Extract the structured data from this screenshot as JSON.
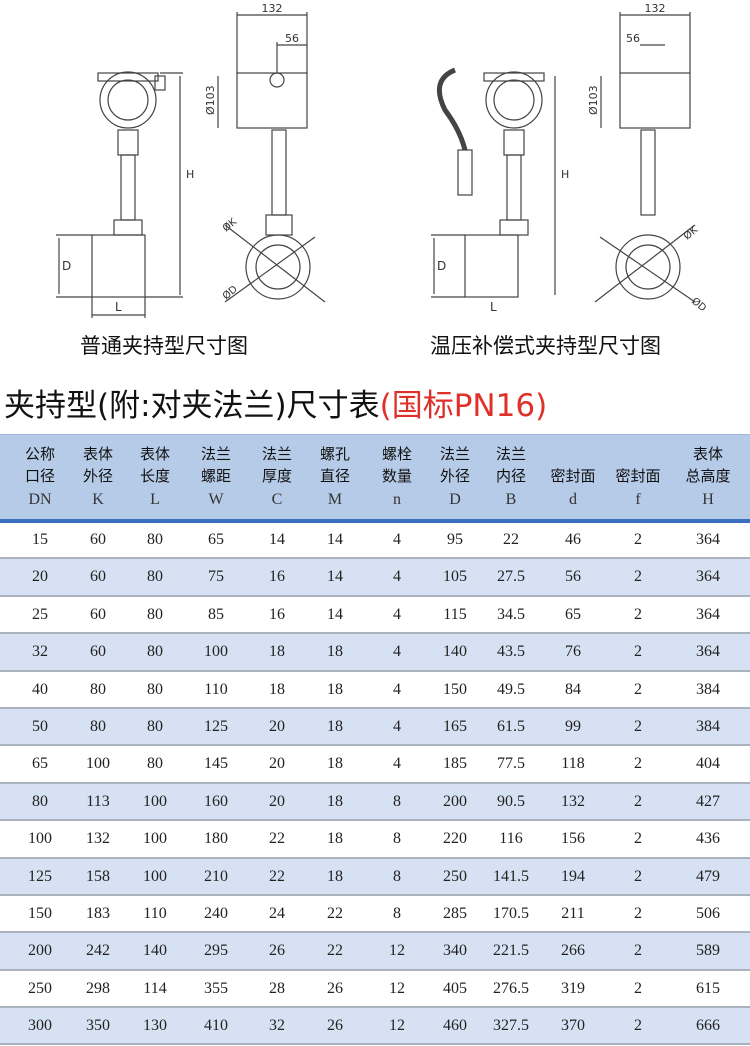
{
  "drawings": [
    {
      "caption": "普通夹持型尺寸图",
      "dims": {
        "width": "132",
        "offset": "56",
        "head_dia": "Ø103",
        "height": "H",
        "pipe_dia": "D",
        "length": "L",
        "body_dia": "ØK",
        "flange_dia": "ØD"
      }
    },
    {
      "caption": "温压补偿式夹持型尺寸图",
      "dims": {
        "width": "132",
        "offset": "56",
        "head_dia": "Ø103",
        "height": "H",
        "pipe_dia": "D",
        "length": "L",
        "body_dia": "ØK",
        "flange_dia": "ØD"
      }
    }
  ],
  "title": {
    "main": "夹持型(附:对夹法兰)尺寸表",
    "standard": "(国标PN16)",
    "accent_color": "#e0302a"
  },
  "table": {
    "header_bg": "#b6cbe7",
    "alt_row_bg": "#d6e2f3",
    "columns": [
      {
        "l1": "公称",
        "l2": "口径",
        "sym": "DN"
      },
      {
        "l1": "表体",
        "l2": "外径",
        "sym": "K"
      },
      {
        "l1": "表体",
        "l2": "长度",
        "sym": "L"
      },
      {
        "l1": "法兰",
        "l2": "螺距",
        "sym": "W"
      },
      {
        "l1": "法兰",
        "l2": "厚度",
        "sym": "C"
      },
      {
        "l1": "螺孔",
        "l2": "直径",
        "sym": "M"
      },
      {
        "l1": "螺栓",
        "l2": "数量",
        "sym": "n"
      },
      {
        "l1": "法兰",
        "l2": "外径",
        "sym": "D"
      },
      {
        "l1": "法兰",
        "l2": "内径",
        "sym": "B"
      },
      {
        "l1": "",
        "l2": "密封面",
        "sym": "d"
      },
      {
        "l1": "",
        "l2": "密封面",
        "sym": "f"
      },
      {
        "l1": "表体",
        "l2": "总高度",
        "sym": "H"
      }
    ],
    "rows": [
      [
        "15",
        "60",
        "80",
        "65",
        "14",
        "14",
        "4",
        "95",
        "22",
        "46",
        "2",
        "364"
      ],
      [
        "20",
        "60",
        "80",
        "75",
        "16",
        "14",
        "4",
        "105",
        "27.5",
        "56",
        "2",
        "364"
      ],
      [
        "25",
        "60",
        "80",
        "85",
        "16",
        "14",
        "4",
        "115",
        "34.5",
        "65",
        "2",
        "364"
      ],
      [
        "32",
        "60",
        "80",
        "100",
        "18",
        "18",
        "4",
        "140",
        "43.5",
        "76",
        "2",
        "364"
      ],
      [
        "40",
        "80",
        "80",
        "110",
        "18",
        "18",
        "4",
        "150",
        "49.5",
        "84",
        "2",
        "384"
      ],
      [
        "50",
        "80",
        "80",
        "125",
        "20",
        "18",
        "4",
        "165",
        "61.5",
        "99",
        "2",
        "384"
      ],
      [
        "65",
        "100",
        "80",
        "145",
        "20",
        "18",
        "4",
        "185",
        "77.5",
        "118",
        "2",
        "404"
      ],
      [
        "80",
        "113",
        "100",
        "160",
        "20",
        "18",
        "8",
        "200",
        "90.5",
        "132",
        "2",
        "427"
      ],
      [
        "100",
        "132",
        "100",
        "180",
        "22",
        "18",
        "8",
        "220",
        "116",
        "156",
        "2",
        "436"
      ],
      [
        "125",
        "158",
        "100",
        "210",
        "22",
        "18",
        "8",
        "250",
        "141.5",
        "194",
        "2",
        "479"
      ],
      [
        "150",
        "183",
        "110",
        "240",
        "24",
        "22",
        "8",
        "285",
        "170.5",
        "211",
        "2",
        "506"
      ],
      [
        "200",
        "242",
        "140",
        "295",
        "26",
        "22",
        "12",
        "340",
        "221.5",
        "266",
        "2",
        "589"
      ],
      [
        "250",
        "298",
        "114",
        "355",
        "28",
        "26",
        "12",
        "405",
        "276.5",
        "319",
        "2",
        "615"
      ],
      [
        "300",
        "350",
        "130",
        "410",
        "32",
        "26",
        "12",
        "460",
        "327.5",
        "370",
        "2",
        "666"
      ]
    ]
  }
}
